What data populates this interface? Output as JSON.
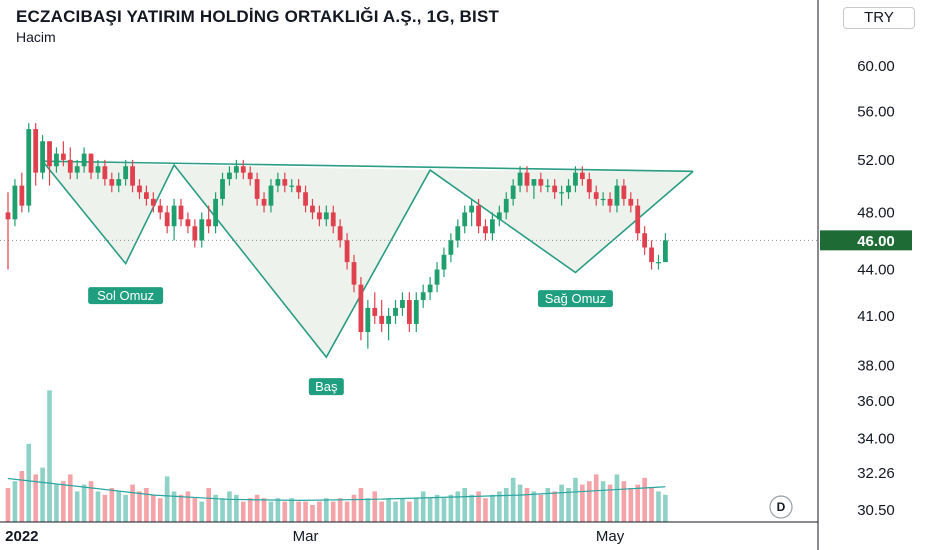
{
  "header": {
    "title": "ECZACIBAŞI YATIRIM HOLDİNG ORTAKLIĞI A.Ş., 1G, BIST",
    "subtitle": "Hacim",
    "currency": "TRY"
  },
  "colors": {
    "up": "#1f9e6e",
    "down": "#e0414e",
    "volume_up": "#8ed1c6",
    "volume_down": "#f4a3a8",
    "pattern_line": "#2a9d84",
    "pattern_fill": "#eef2ec",
    "annotation_bg": "#1f9e80",
    "price_label_bg": "#1f6b36"
  },
  "price_label": "46.00",
  "d_badge": "D",
  "chart_data": {
    "type": "candlestick",
    "title": "ECZACIBAŞI YATIRIM HOLDİNG ORTAKLIĞI A.Ş., 1G, BIST",
    "y_scale": "log",
    "ylim": [
      29.6,
      64.5
    ],
    "y_ticks": [
      "60.00",
      "56.00",
      "52.00",
      "48.00",
      "46.00",
      "44.00",
      "41.00",
      "38.00",
      "36.00",
      "34.00",
      "32.26",
      "30.50"
    ],
    "x_ticks": [
      {
        "label": "2022",
        "date": "2022-01-03",
        "bold": true
      },
      {
        "label": "Mar",
        "date": "2022-03-01",
        "bold": false
      },
      {
        "label": "May",
        "date": "2022-05-02",
        "bold": false
      }
    ],
    "last_price": 46.0,
    "candles": [
      [
        48,
        49.5,
        44,
        47.5
      ],
      [
        47.5,
        50.5,
        47,
        50
      ],
      [
        50,
        51,
        48,
        48.5
      ],
      [
        48.5,
        55,
        48,
        54.5
      ],
      [
        54.5,
        55,
        50,
        51
      ],
      [
        51,
        54,
        50.5,
        53.5
      ],
      [
        53.5,
        53.5,
        50,
        51.5
      ],
      [
        51.5,
        53,
        51,
        52.5
      ],
      [
        52.5,
        53.5,
        51.5,
        52
      ],
      [
        52,
        53,
        50.5,
        51
      ],
      [
        51,
        52,
        50.5,
        51.5
      ],
      [
        51.5,
        53,
        51,
        52.5
      ],
      [
        52.5,
        52.5,
        50.5,
        51
      ],
      [
        51,
        52,
        50.5,
        51.5
      ],
      [
        51.5,
        52,
        50,
        50.5
      ],
      [
        50.5,
        51,
        49.5,
        50
      ],
      [
        50,
        51,
        49.5,
        50.5
      ],
      [
        50.5,
        52,
        50,
        51.5
      ],
      [
        51.5,
        52,
        49.5,
        50
      ],
      [
        50,
        50.5,
        49,
        49.5
      ],
      [
        49.5,
        50,
        48.5,
        49
      ],
      [
        49,
        49.5,
        48,
        48.5
      ],
      [
        48.5,
        49,
        47.5,
        48
      ],
      [
        48,
        48.5,
        46.5,
        47
      ],
      [
        47,
        49,
        46,
        48.5
      ],
      [
        48.5,
        49,
        47,
        47.5
      ],
      [
        47.5,
        48,
        46.5,
        47
      ],
      [
        47,
        47.5,
        45.5,
        46
      ],
      [
        46,
        48,
        45.5,
        47.5
      ],
      [
        47.5,
        48.5,
        46.5,
        47
      ],
      [
        47,
        49.5,
        46.5,
        49
      ],
      [
        49,
        51,
        48.5,
        50.5
      ],
      [
        50.5,
        51.5,
        50,
        51
      ],
      [
        51,
        52,
        50.5,
        51.5
      ],
      [
        51.5,
        52,
        50.5,
        51
      ],
      [
        51,
        51.5,
        50,
        50.5
      ],
      [
        50.5,
        51,
        48.5,
        49
      ],
      [
        49,
        49.5,
        48,
        48.5
      ],
      [
        48.5,
        50.5,
        48,
        50
      ],
      [
        50,
        51,
        49.5,
        50.5
      ],
      [
        50.5,
        51,
        49.5,
        50
      ],
      [
        50,
        50.5,
        49.5,
        50
      ],
      [
        50,
        50.5,
        49,
        49.5
      ],
      [
        49.5,
        50,
        48,
        48.5
      ],
      [
        48.5,
        49,
        47.5,
        48
      ],
      [
        48,
        48.5,
        47,
        47.5
      ],
      [
        47.5,
        48.5,
        47,
        48
      ],
      [
        48,
        48.5,
        46.5,
        47
      ],
      [
        47,
        47.5,
        45.5,
        46
      ],
      [
        46,
        46.5,
        44,
        44.5
      ],
      [
        44.5,
        45,
        42.5,
        43
      ],
      [
        43,
        43.5,
        39.5,
        40
      ],
      [
        40,
        42,
        39,
        41.5
      ],
      [
        41.5,
        42.5,
        40.5,
        41
      ],
      [
        41,
        42,
        40,
        40.5
      ],
      [
        40.5,
        41.5,
        39.5,
        41
      ],
      [
        41,
        42,
        40.5,
        41.5
      ],
      [
        41.5,
        42.5,
        41,
        42
      ],
      [
        42,
        42.5,
        40,
        40.5
      ],
      [
        40.5,
        42.5,
        40,
        42
      ],
      [
        42,
        43,
        41.5,
        42.5
      ],
      [
        42.5,
        43.5,
        42,
        43
      ],
      [
        43,
        44.5,
        42.5,
        44
      ],
      [
        44,
        45.5,
        43.5,
        45
      ],
      [
        45,
        46.5,
        44.5,
        46
      ],
      [
        46,
        47.5,
        45.5,
        47
      ],
      [
        47,
        48.5,
        46.5,
        48
      ],
      [
        48,
        49,
        47,
        48.5
      ],
      [
        48.5,
        49,
        46.5,
        47
      ],
      [
        47,
        47.5,
        46,
        46.5
      ],
      [
        46.5,
        48,
        46,
        47.5
      ],
      [
        47.5,
        48.5,
        47,
        48
      ],
      [
        48,
        49.5,
        47.5,
        49
      ],
      [
        49,
        50.5,
        48.5,
        50
      ],
      [
        50,
        51.5,
        49.5,
        51
      ],
      [
        51,
        51.5,
        49.5,
        50
      ],
      [
        50,
        50.5,
        49,
        50.5
      ],
      [
        50.5,
        51,
        49.5,
        50
      ],
      [
        50,
        50.5,
        49.5,
        50
      ],
      [
        50,
        50.5,
        49,
        49.5
      ],
      [
        49.5,
        50,
        48.5,
        49.5
      ],
      [
        49.5,
        50.5,
        49,
        50
      ],
      [
        50,
        51.5,
        49.5,
        51
      ],
      [
        51,
        51.5,
        50,
        50.5
      ],
      [
        50.5,
        51,
        49,
        49.5
      ],
      [
        49.5,
        50,
        48.5,
        49
      ],
      [
        49,
        49.5,
        48.5,
        49
      ],
      [
        49,
        49.5,
        48,
        48.5
      ],
      [
        48.5,
        50.5,
        48,
        50
      ],
      [
        50,
        50.5,
        48.5,
        49
      ],
      [
        49,
        49.5,
        48,
        48.5
      ],
      [
        48.5,
        49,
        46,
        46.5
      ],
      [
        46.5,
        47,
        45,
        45.5
      ],
      [
        45.5,
        46,
        44,
        44.5
      ],
      [
        44.5,
        45,
        44,
        44.5
      ],
      [
        44.5,
        46.5,
        44.5,
        46
      ]
    ],
    "volume": [
      31.4,
      31.6,
      31.9,
      32.7,
      31.8,
      32.0,
      31.6,
      31.5,
      31.6,
      31.8,
      31.3,
      31.5,
      31.6,
      31.3,
      31.2,
      31.4,
      31.3,
      31.2,
      31.5,
      31.3,
      31.4,
      31.2,
      31.1,
      31.5,
      31.3,
      31.2,
      31.3,
      31.1,
      31.0,
      31.4,
      31.2,
      31.1,
      31.3,
      31.2,
      31.0,
      31.1,
      31.2,
      31.1,
      31.0,
      31.1,
      31.0,
      31.1,
      31.0,
      31.0,
      30.9,
      31.0,
      31.1,
      31.0,
      31.1,
      31.0,
      31.2,
      31.4,
      31.1,
      31.3,
      31.0,
      31.1,
      31.0,
      31.1,
      31.0,
      31.1,
      31.3,
      31.1,
      31.2,
      31.1,
      31.2,
      31.3,
      31.4,
      31.2,
      31.3,
      31.1,
      31.2,
      31.3,
      31.4,
      31.7,
      31.5,
      31.4,
      31.3,
      31.2,
      31.4,
      31.3,
      31.5,
      31.4,
      31.7,
      31.5,
      31.6,
      31.8,
      31.6,
      31.5,
      31.8,
      31.6,
      31.4,
      31.5,
      31.7,
      31.4,
      31.3,
      31.2
    ],
    "volume_ma": [
      32.0,
      31.6,
      31.2,
      31.0,
      30.95,
      31.0,
      31.1,
      31.2,
      31.4,
      31.6
    ],
    "volume_extra_highs": [
      {
        "index": 6,
        "value": 36.6
      },
      {
        "index": 23,
        "value": 32.1
      }
    ],
    "pattern": {
      "name": "Inverse Head and Shoulders",
      "points": [
        {
          "label": "",
          "date": "2022-01-06",
          "price": 51.9
        },
        {
          "label": "Sol Omuz",
          "date": "2022-01-24",
          "price": 44.4
        },
        {
          "label": "",
          "date": "2022-02-02",
          "price": 51.6
        },
        {
          "label": "Baş",
          "date": "2022-03-04",
          "price": 38.5
        },
        {
          "label": "",
          "date": "2022-03-25",
          "price": 51.2
        },
        {
          "label": "Sağ Omuz",
          "date": "2022-04-25",
          "price": 43.8
        },
        {
          "label": "",
          "date": "2022-05-18",
          "price": 51.1
        }
      ],
      "annotations": [
        {
          "label": "Sol Omuz",
          "date": "2022-01-24",
          "price": 43.2
        },
        {
          "label": "Baş",
          "date": "2022-03-04",
          "price": 37.6
        },
        {
          "label": "Sağ Omuz",
          "date": "2022-04-25",
          "price": 43.0
        }
      ]
    }
  }
}
